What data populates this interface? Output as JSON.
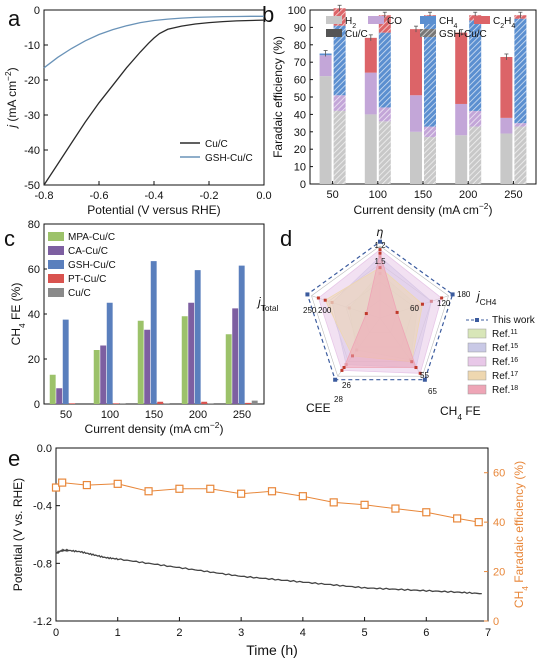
{
  "chart_data": [
    {
      "panel": "a",
      "type": "line",
      "xlabel": "Potential (V versus RHE)",
      "ylabel_main": "j",
      "ylabel_unit": " (mA cm",
      "ylabel_exp": "−2",
      "ylabel_close": ")",
      "xlim": [
        -0.8,
        0.0
      ],
      "ylim": [
        -50,
        0
      ],
      "xticks": [
        "-0.8",
        "-0.6",
        "-0.4",
        "-0.2",
        "0.0"
      ],
      "yticks": [
        "0",
        "-10",
        "-20",
        "-30",
        "-40",
        "-50"
      ],
      "series": [
        {
          "name": "Cu/C",
          "color": "#2b2b2b",
          "x": [
            -0.8,
            -0.75,
            -0.7,
            -0.65,
            -0.6,
            -0.55,
            -0.5,
            -0.45,
            -0.42,
            -0.4,
            -0.38,
            -0.35,
            -0.3,
            -0.25,
            -0.2,
            -0.15,
            -0.1,
            -0.05,
            0.0
          ],
          "y": [
            -50,
            -44,
            -38,
            -32,
            -26.5,
            -21.5,
            -16.5,
            -12,
            -9.5,
            -8,
            -6.7,
            -5.5,
            -4.6,
            -4.0,
            -3.6,
            -3.3,
            -3.1,
            -3.0,
            -2.9
          ]
        },
        {
          "name": "GSH-Cu/C",
          "color": "#6a93b8",
          "x": [
            -0.8,
            -0.75,
            -0.7,
            -0.65,
            -0.6,
            -0.55,
            -0.5,
            -0.45,
            -0.4,
            -0.35,
            -0.3,
            -0.25,
            -0.2,
            -0.15,
            -0.1,
            -0.05,
            0.0
          ],
          "y": [
            -16.5,
            -13.5,
            -11,
            -8.8,
            -7.0,
            -5.6,
            -4.5,
            -3.6,
            -3.0,
            -2.6,
            -2.3,
            -2.1,
            -2.0,
            -1.9,
            -1.85,
            -1.8,
            -1.8
          ]
        }
      ]
    },
    {
      "panel": "b",
      "type": "bar",
      "xlabel_main": "Current density (mA cm",
      "xlabel_exp": "−2",
      "xlabel_close": ")",
      "ylabel": "Faradaic efficiency (%)",
      "ylim": [
        0,
        100
      ],
      "yticks": [
        "0",
        "10",
        "20",
        "30",
        "40",
        "50",
        "60",
        "70",
        "80",
        "90",
        "100"
      ],
      "categories": [
        "50",
        "100",
        "150",
        "200",
        "250"
      ],
      "legend": {
        "H2": "H",
        "H2_sub": "2",
        "CO": "CO",
        "CH4": "CH",
        "CH4_sub": "4",
        "C2H4": "C",
        "C2H4_s1": "2",
        "C2H4_mid": "H",
        "C2H4_s2": "4",
        "CuC": "Cu/C",
        "GSH": "GSH-Cu/C"
      },
      "colors": {
        "H2": "#c8c8c8",
        "CO": "#c3a6d8",
        "CH4": "#5b8fd0",
        "C2H4": "#dc6468"
      },
      "series_CuC": {
        "H2": [
          62,
          40,
          30,
          28,
          29
        ],
        "CO": [
          12,
          24,
          21,
          18,
          9
        ],
        "CH4": [
          1,
          0,
          0,
          0,
          0
        ],
        "C2H4": [
          0,
          20,
          38,
          41,
          35
        ]
      },
      "series_GSH": {
        "H2": [
          42,
          36,
          27,
          33,
          33
        ],
        "CO": [
          9,
          8,
          6,
          9,
          2
        ],
        "CH4": [
          40,
          43,
          62,
          52,
          60
        ],
        "C2H4": [
          10,
          10,
          2,
          3,
          2
        ]
      }
    },
    {
      "panel": "c",
      "type": "bar",
      "xlabel_main": "Current density (mA cm",
      "xlabel_exp": "−2",
      "xlabel_close": ")",
      "ylabel_main": "CH",
      "ylabel_sub": "4",
      "ylabel_rest": " FE (%)",
      "ylim": [
        0,
        80
      ],
      "yticks": [
        "0",
        "20",
        "40",
        "60",
        "80"
      ],
      "categories": [
        "50",
        "100",
        "150",
        "200",
        "250"
      ],
      "series": [
        {
          "name": "MPA-Cu/C",
          "color": "#9cc26a",
          "values": [
            13,
            24,
            37,
            39,
            31
          ]
        },
        {
          "name": "CA-Cu/C",
          "color": "#7d5fa1",
          "values": [
            7,
            26,
            33,
            45,
            42.5
          ]
        },
        {
          "name": "GSH-Cu/C",
          "color": "#5a7fbd",
          "values": [
            37.5,
            45,
            63.5,
            59.5,
            61.5
          ]
        },
        {
          "name": "PT-Cu/C",
          "color": "#d9534f",
          "values": [
            0.3,
            0.3,
            1.0,
            1.0,
            0.5
          ]
        },
        {
          "name": "Cu/C",
          "color": "#8a8a8a",
          "values": [
            0,
            0.3,
            0.3,
            0.3,
            1.5
          ]
        }
      ]
    },
    {
      "panel": "d",
      "type": "radar",
      "axes": {
        "eta": "η",
        "jch4": "j",
        "jch4_sub": "CH4",
        "fe": "CH",
        "fe_sub": "4",
        "fe_rest": " FE",
        "cee": "CEE",
        "jtot": "j",
        "jtot_sub": "Total"
      },
      "axis_max_labels": {
        "eta": "1.2",
        "jch4": "180",
        "fe": "65",
        "cee": "28",
        "jtot": "250"
      },
      "axis_inner_labels": {
        "eta": "1.5",
        "jch4_1": "120",
        "jch4_2": "60",
        "jtot": "200",
        "fe": "55",
        "cee": "26"
      },
      "series": [
        {
          "name": "This work",
          "color": "#3b5b9e",
          "values": [
            1.0,
            1.0,
            1.0,
            1.0,
            1.0
          ]
        },
        {
          "name": "Ref.",
          "sup": "11",
          "color": "#d8e6b8",
          "values": [
            0.62,
            0.55,
            0.72,
            0.55,
            0.45
          ]
        },
        {
          "name": "Ref.",
          "sup": "15",
          "color": "#c9c9e6",
          "values": [
            0.85,
            0.75,
            0.85,
            0.8,
            0.7
          ]
        },
        {
          "name": "Ref.",
          "sup": "16",
          "color": "#e8c8e8",
          "values": [
            0.95,
            0.9,
            0.95,
            0.9,
            0.9
          ]
        },
        {
          "name": "Ref.",
          "sup": "17",
          "color": "#eed7b0",
          "values": [
            0.7,
            0.62,
            0.75,
            0.65,
            0.8
          ]
        },
        {
          "name": "Ref.",
          "sup": "18",
          "color": "#eea5b6",
          "values": [
            0.9,
            0.25,
            0.85,
            0.85,
            0.2
          ]
        }
      ]
    },
    {
      "panel": "e",
      "type": "line",
      "xlabel": "Time (h)",
      "ylabel_left": "Potential (V vs. RHE)",
      "ylabel_right_main": "CH",
      "ylabel_right_sub": "4",
      "ylabel_right_rest": " Faradaic efficiency (%)",
      "xlim": [
        0,
        7
      ],
      "ylim_left": [
        -1.2,
        0.0
      ],
      "ylim_right": [
        0,
        70
      ],
      "xticks": [
        "0",
        "1",
        "2",
        "3",
        "4",
        "5",
        "6",
        "7"
      ],
      "yticks_left": [
        "0.0",
        "-0.4",
        "-0.8",
        "-1.2"
      ],
      "yticks_right": [
        "0",
        "20",
        "40",
        "60"
      ],
      "potential": {
        "color": "#444444",
        "x": [
          0,
          0.1,
          0.2,
          0.4,
          0.6,
          0.8,
          1.0,
          1.5,
          2.0,
          2.5,
          3.0,
          3.5,
          4.0,
          4.5,
          5.0,
          5.5,
          6.0,
          6.5,
          6.9
        ],
        "y": [
          -0.73,
          -0.71,
          -0.71,
          -0.72,
          -0.74,
          -0.76,
          -0.77,
          -0.8,
          -0.83,
          -0.86,
          -0.89,
          -0.91,
          -0.93,
          -0.95,
          -0.97,
          -0.98,
          -0.99,
          -1.0,
          -1.01
        ]
      },
      "fe": {
        "color": "#e8873a",
        "x": [
          0,
          0.1,
          0.5,
          1.0,
          1.5,
          2.0,
          2.5,
          3.0,
          3.5,
          4.0,
          4.5,
          5.0,
          5.5,
          6.0,
          6.5,
          6.85
        ],
        "y": [
          54,
          56,
          55,
          55.5,
          52.5,
          53.5,
          53.5,
          51.5,
          52.5,
          50.5,
          48,
          47,
          45.5,
          44,
          41.5,
          40
        ]
      }
    }
  ]
}
